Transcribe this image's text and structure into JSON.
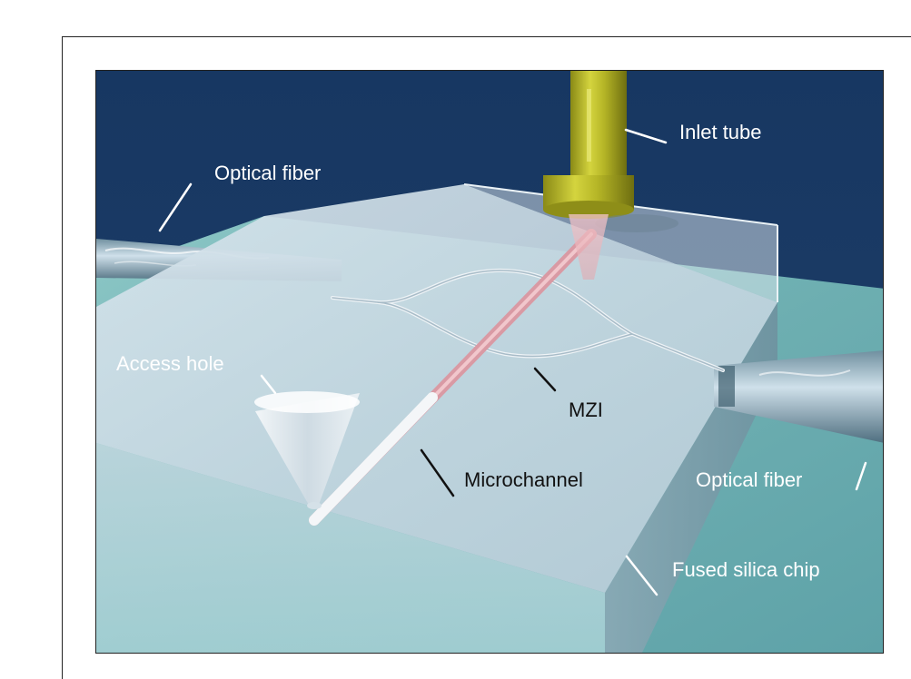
{
  "diagram": {
    "labels": {
      "inlet_tube": "Inlet tube",
      "optical_fiber_left": "Optical fiber",
      "access_hole": "Access hole",
      "mzi": "MZI",
      "microchannel": "Microchannel",
      "optical_fiber_right": "Optical fiber",
      "fused_silica_chip": "Fused silica chip"
    },
    "colors": {
      "background_navy": "#1c3a62",
      "chip_glass": "#c8d8e3",
      "substrate_teal": "#7bb6b8",
      "inlet_tube_olive": "#b0b026",
      "microchannel_pink": "#d9a0a8",
      "waveguide_white": "#e8eef2"
    }
  }
}
